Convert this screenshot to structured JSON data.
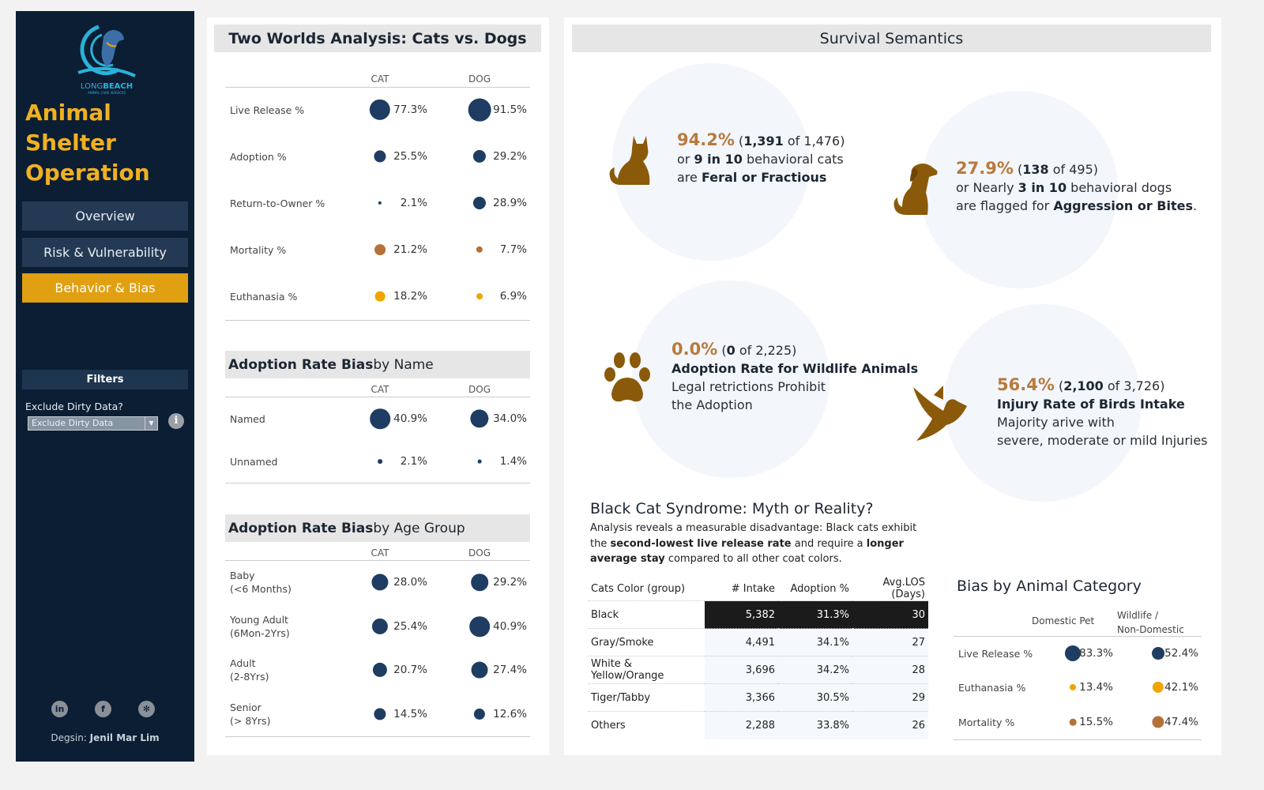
{
  "sidebar": {
    "logo_text": "LONGBEACH ANIMAL CARE SERVICES",
    "title_line1": "Animal Shelter",
    "title_line2": "Operation",
    "nav": [
      {
        "label": "Overview",
        "active": false
      },
      {
        "label": "Risk & Vulnerability",
        "active": false
      },
      {
        "label": "Behavior & Bias",
        "active": true
      }
    ],
    "filters_title": "Filters",
    "filter_label": "Exclude Dirty Data?",
    "filter_value": "Exclude Dirty Data",
    "info_icon": "i",
    "social": [
      {
        "icon": "linkedin-icon",
        "glyph": "in"
      },
      {
        "icon": "facebook-icon",
        "glyph": "f"
      },
      {
        "icon": "tableau-icon",
        "glyph": "✻"
      }
    ],
    "design_prefix": "Degsin: ",
    "designer": "Jenil Mar Lim"
  },
  "colors": {
    "navy": "#1f3d63",
    "brown": "#b5713a",
    "yellow": "#f0a500",
    "gold": "#e0a012",
    "sidebar": "#0b1e34"
  },
  "two_worlds": {
    "title": "Two Worlds Analysis: Cats vs. Dogs",
    "col_cat": "CAT",
    "col_dog": "DOG",
    "rows": [
      {
        "label": "Live Release %",
        "cat": "77.3%",
        "dog": "91.5%",
        "cat_v": 77.3,
        "dog_v": 91.5,
        "color": "#1f3d63"
      },
      {
        "label": "Adoption %",
        "cat": "25.5%",
        "dog": "29.2%",
        "cat_v": 25.5,
        "dog_v": 29.2,
        "color": "#1f3d63"
      },
      {
        "label": "Return-to-Owner %",
        "cat": "2.1%",
        "dog": "28.9%",
        "cat_v": 2.1,
        "dog_v": 28.9,
        "color": "#1f3d63"
      },
      {
        "label": "Mortality %",
        "cat": "21.2%",
        "dog": "7.7%",
        "cat_v": 21.2,
        "dog_v": 7.7,
        "color": "#b5713a"
      },
      {
        "label": "Euthanasia %",
        "cat": "18.2%",
        "dog": "6.9%",
        "cat_v": 18.2,
        "dog_v": 6.9,
        "color": "#f0a500"
      }
    ]
  },
  "by_name": {
    "title_bold": "Adoption Rate Bias",
    "title_rest": " by Name",
    "col_cat": "CAT",
    "col_dog": "DOG",
    "rows": [
      {
        "label": "Named",
        "cat": "40.9%",
        "dog": "34.0%",
        "cat_v": 40.9,
        "dog_v": 34.0,
        "color": "#1f3d63"
      },
      {
        "label": "Unnamed",
        "cat": "2.1%",
        "dog": "1.4%",
        "cat_v": 2.1,
        "dog_v": 1.4,
        "color": "#1f3d63"
      }
    ]
  },
  "by_age": {
    "title_bold": "Adoption Rate Bias",
    "title_rest": " by Age Group",
    "col_cat": "CAT",
    "col_dog": "DOG",
    "rows": [
      {
        "label": "Baby\n(<6 Months)",
        "cat": "28.0%",
        "dog": "29.2%",
        "cat_v": 28.0,
        "dog_v": 29.2,
        "color": "#1f3d63"
      },
      {
        "label": "Young Adult\n(6Mon-2Yrs)",
        "cat": "25.4%",
        "dog": "40.9%",
        "cat_v": 25.4,
        "dog_v": 40.9,
        "color": "#1f3d63"
      },
      {
        "label": "Adult\n(2-8Yrs)",
        "cat": "20.7%",
        "dog": "27.4%",
        "cat_v": 20.7,
        "dog_v": 27.4,
        "color": "#1f3d63"
      },
      {
        "label": "Senior\n(> 8Yrs)",
        "cat": "14.5%",
        "dog": "12.6%",
        "cat_v": 14.5,
        "dog_v": 12.6,
        "color": "#1f3d63"
      }
    ]
  },
  "survival": {
    "title": "Survival Semantics",
    "cards": [
      {
        "icon": "cat-icon",
        "pct": "94.2%",
        "count": "1,391",
        "of": "of",
        "total": "1,476",
        "l2a": "or ",
        "l2b": "9 in 10",
        "l2c": " behavioral cats",
        "l3a": "are ",
        "l3b": "Feral or Fractious",
        "l3c": ""
      },
      {
        "icon": "dog-icon",
        "pct": "27.9%",
        "count": "138",
        "of": "of",
        "total": "495",
        "l2a": "or Nearly ",
        "l2b": "3 in 10",
        "l2c": " behavioral dogs",
        "l3a": "are flagged for ",
        "l3b": "Aggression or Bites",
        "l3c": "."
      },
      {
        "icon": "paw-icon",
        "pct": "0.0%",
        "count": "0",
        "of": "of",
        "total": "2,225",
        "l2a": "",
        "l2b": "Adoption Rate for Wildlife Animals",
        "l2c": "",
        "l3a": "Legal retrictions Prohibit",
        "l3b": "",
        "l3c": "",
        "l4": "the Adoption"
      },
      {
        "icon": "bird-icon",
        "pct": "56.4%",
        "count": "2,100",
        "of": "of",
        "total": "3,726",
        "l2a": "",
        "l2b": "Injury Rate of Birds Intake",
        "l2c": "",
        "l3a": "Majority arive with",
        "l3b": "",
        "l3c": "",
        "l4": "severe, moderate or mild Injuries"
      }
    ]
  },
  "black_cat": {
    "title": "Black Cat Syndrome: Myth or Reality?",
    "p1": "Analysis reveals a measurable disadvantage: Black cats exhibit the ",
    "p2": "second-lowest live release rate",
    "p3": " and require a ",
    "p4": "longer average stay",
    "p5": " compared to all other coat colors.",
    "headers": [
      "Cats Color (group)",
      "# Intake",
      "Adoption %",
      "Avg.LOS (Days)"
    ],
    "rows": [
      [
        "Black",
        "5,382",
        "31.3%",
        "30"
      ],
      [
        "Gray/Smoke",
        "4,491",
        "34.1%",
        "27"
      ],
      [
        "White & Yellow/Orange",
        "3,696",
        "34.2%",
        "28"
      ],
      [
        "Tiger/Tabby",
        "3,366",
        "30.5%",
        "29"
      ],
      [
        "Others",
        "2,288",
        "33.8%",
        "26"
      ]
    ]
  },
  "bias_category": {
    "title": "Bias by Animal Category",
    "col1": "Domestic Pet",
    "col2a": "Wildlife /",
    "col2b": "Non-Domestic",
    "rows": [
      {
        "label": "Live Release %",
        "a": "83.3%",
        "b": "52.4%",
        "a_v": 83.3,
        "b_v": 52.4,
        "color": "#1f3d63"
      },
      {
        "label": "Euthanasia %",
        "a": "13.4%",
        "b": "42.1%",
        "a_v": 13.4,
        "b_v": 42.1,
        "color": "#f0a500"
      },
      {
        "label": "Mortality %",
        "a": "15.5%",
        "b": "47.4%",
        "a_v": 15.5,
        "b_v": 47.4,
        "color": "#b5713a"
      }
    ]
  }
}
